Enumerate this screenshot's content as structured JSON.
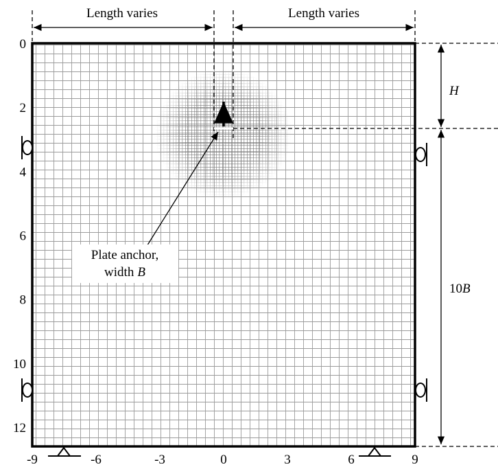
{
  "x_axis": {
    "ticks": [
      -9,
      -6,
      -3,
      0,
      3,
      6,
      9
    ]
  },
  "y_axis": {
    "ticks": [
      0,
      2,
      4,
      6,
      8,
      10,
      12
    ]
  },
  "top_dimensions": {
    "left": "Length varies",
    "right": "Length varies"
  },
  "right_dimensions": {
    "upper": "H",
    "lower": {
      "prefix": "10",
      "symbol": "B"
    }
  },
  "anchor_label": {
    "lines": [
      "Plate anchor,",
      "width"
    ],
    "symbol": "B"
  }
}
